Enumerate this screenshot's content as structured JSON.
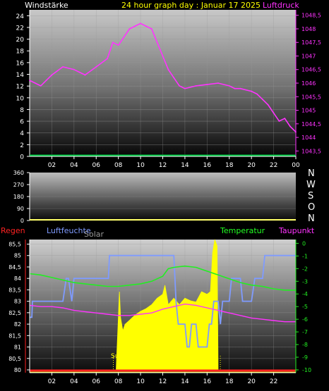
{
  "header": {
    "left_label": "Windstärke",
    "title": "24 hour graph day : Januar 17 2025",
    "right_label": "Luftdruck"
  },
  "wind_dir_labels": [
    "N",
    "W",
    "S",
    "O",
    "N"
  ],
  "legend3": {
    "regen": "Regen",
    "luftfeuchte": "Luftfeuchte",
    "solar": "Solar",
    "temperatur": "Temperatur",
    "taupunkt": "Taupunkt",
    "sun_rise": "Sun R"
  },
  "colors": {
    "wind": "#00cc44",
    "pressure": "#ff33ff",
    "humidity": "#7f9bff",
    "temperature": "#22ee22",
    "dewpoint": "#ff33ff",
    "solar": "#ffff00",
    "rain": "#ff2222",
    "winddir": "#ffff66"
  },
  "chart_data": [
    {
      "type": "line",
      "x_ticks": [
        "02",
        "04",
        "06",
        "08",
        "10",
        "12",
        "14",
        "16",
        "18",
        "20",
        "22",
        "00"
      ],
      "yticks_left": [
        "24",
        "22",
        "20",
        "18",
        "16",
        "14",
        "12",
        "10",
        "8",
        "6",
        "4",
        "2",
        "0"
      ],
      "yticks_right": [
        "1048,5",
        "1048",
        "1047,5",
        "1047",
        "1046,5",
        "1046",
        "1045,5",
        "1045",
        "1044,5",
        "1044",
        "1043,5"
      ],
      "ylim_left": [
        0,
        25
      ],
      "ylim_right": [
        1043.3,
        1048.7
      ],
      "series": [
        {
          "name": "Luftdruck",
          "axis": "right",
          "x": [
            0,
            0.5,
            1,
            1.5,
            2,
            3,
            4,
            4.5,
            5,
            6,
            7,
            7.5,
            8,
            9,
            9.5,
            10,
            10.5,
            11,
            11.5,
            12,
            12.5,
            13,
            13.5,
            14,
            15,
            16,
            17,
            18,
            18.5,
            19,
            20,
            20.5,
            21,
            21.5,
            22,
            22.5,
            23,
            23.5,
            24
          ],
          "y": [
            1046.1,
            1046.0,
            1045.9,
            1046.1,
            1046.3,
            1046.6,
            1046.5,
            1046.4,
            1046.3,
            1046.6,
            1046.9,
            1047.5,
            1047.4,
            1048.0,
            1048.1,
            1048.2,
            1048.1,
            1048.0,
            1047.5,
            1047.0,
            1046.5,
            1046.2,
            1045.9,
            1045.8,
            1045.9,
            1045.95,
            1046.0,
            1045.9,
            1045.8,
            1045.8,
            1045.7,
            1045.6,
            1045.4,
            1045.2,
            1044.9,
            1044.6,
            1044.7,
            1044.4,
            1044.2
          ]
        },
        {
          "name": "Windstärke",
          "axis": "left",
          "x": [
            0,
            24
          ],
          "y": [
            0,
            0
          ]
        }
      ]
    },
    {
      "type": "line",
      "x_ticks": [],
      "yticks_left": [
        "360",
        "270",
        "180",
        "90",
        "0"
      ],
      "ylim": [
        0,
        360
      ],
      "series": []
    },
    {
      "type": "line",
      "x_ticks": [
        "02",
        "04",
        "06",
        "08",
        "10",
        "12",
        "14",
        "16",
        "18",
        "20",
        "22"
      ],
      "yticks_left": [
        "85,5",
        "85",
        "84,5",
        "84",
        "83,5",
        "83",
        "82,5",
        "82",
        "81,5",
        "81",
        "80,5",
        "80"
      ],
      "yticks_right": [
        "0",
        "-1",
        "-2",
        "-3",
        "-4",
        "-5",
        "-6",
        "-7",
        "-8",
        "-9",
        "-10"
      ],
      "ylim_left": [
        80,
        85.7
      ],
      "ylim_right": [
        -10,
        0.3
      ],
      "series": [
        {
          "name": "Luftfeuchte",
          "axis": "left",
          "x": [
            0,
            0.2,
            0.25,
            0.3,
            0.5,
            3,
            3.3,
            3.5,
            3.8,
            4,
            7,
            7.1,
            7.2,
            7.3,
            13,
            13.1,
            13.2,
            13.4,
            13.6,
            14,
            14.2,
            14.4,
            14.6,
            15,
            15.2,
            15.3,
            16,
            16.2,
            16.4,
            16.6,
            17,
            17.2,
            17.4,
            18,
            18.2,
            19,
            19.2,
            20,
            20.3,
            21,
            21.2,
            22,
            22.2,
            23,
            24
          ],
          "y": [
            82.3,
            82.3,
            83.0,
            83.0,
            83.0,
            83.0,
            84.0,
            84.0,
            83.0,
            84.0,
            84.0,
            84.0,
            85.0,
            85.0,
            85.0,
            84.0,
            83.0,
            82.0,
            82.0,
            82.0,
            81.0,
            81.0,
            82.0,
            82.0,
            81.0,
            81.0,
            81.0,
            82.0,
            82.0,
            83.0,
            83.0,
            82.0,
            83.0,
            83.0,
            84.0,
            84.0,
            83.0,
            83.0,
            84.0,
            84.0,
            85.0,
            85.0,
            85.0,
            85.0,
            85.0
          ]
        },
        {
          "name": "Temperatur",
          "axis": "right",
          "x": [
            0,
            1,
            2,
            3,
            4,
            5,
            6,
            7,
            8,
            9,
            10,
            11,
            12,
            12.5,
            13,
            14,
            15,
            16,
            17,
            18,
            19,
            20,
            21,
            22,
            23,
            24
          ],
          "y": [
            -2.4,
            -2.5,
            -2.7,
            -2.9,
            -3.1,
            -3.2,
            -3.3,
            -3.4,
            -3.4,
            -3.3,
            -3.2,
            -3.0,
            -2.6,
            -2.0,
            -1.9,
            -1.8,
            -1.9,
            -2.2,
            -2.5,
            -2.8,
            -3.1,
            -3.3,
            -3.4,
            -3.6,
            -3.7,
            -3.7
          ]
        },
        {
          "name": "Taupunkt",
          "axis": "right",
          "x": [
            0,
            1,
            2,
            3,
            4,
            5,
            6,
            7,
            8,
            9,
            10,
            11,
            12,
            13,
            14,
            15,
            16,
            17,
            18,
            19,
            20,
            21,
            22,
            23,
            24
          ],
          "y": [
            -4.9,
            -5.0,
            -5.0,
            -5.1,
            -5.3,
            -5.4,
            -5.5,
            -5.6,
            -5.7,
            -5.7,
            -5.6,
            -5.5,
            -5.2,
            -5.0,
            -4.8,
            -4.9,
            -5.1,
            -5.3,
            -5.5,
            -5.7,
            -5.9,
            -6.0,
            -6.1,
            -6.2,
            -6.2
          ]
        },
        {
          "name": "Solar",
          "axis": "none",
          "x": [
            7.8,
            8.1,
            8.2,
            8.4,
            8.6,
            9,
            9.5,
            10,
            10.5,
            11,
            11.5,
            12,
            12.2,
            12.5,
            13,
            13.5,
            14,
            14.5,
            15,
            15.5,
            16,
            16.3,
            16.5,
            16.7,
            16.9,
            17.0
          ],
          "y": [
            0,
            0.6,
            0.4,
            0.3,
            0.35,
            0.38,
            0.42,
            0.45,
            0.47,
            0.5,
            0.55,
            0.58,
            0.65,
            0.5,
            0.55,
            0.5,
            0.55,
            0.53,
            0.52,
            0.6,
            0.58,
            0.6,
            0.9,
            1.0,
            0.95,
            0
          ]
        },
        {
          "name": "Regen",
          "axis": "left",
          "x": [
            0,
            24
          ],
          "y": [
            80,
            80
          ]
        }
      ]
    }
  ]
}
